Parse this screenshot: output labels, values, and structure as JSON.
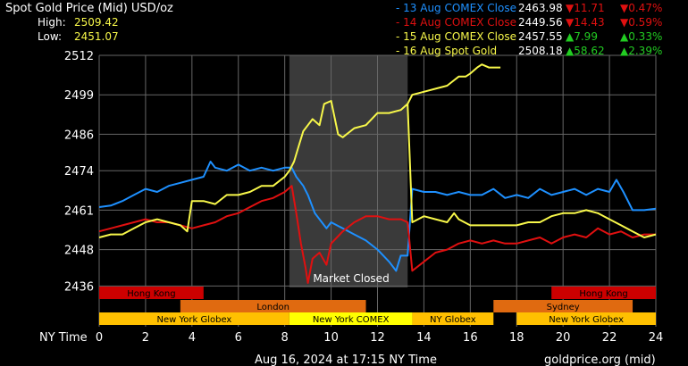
{
  "header": {
    "title": "Spot Gold Price (Mid) USD/oz",
    "high_label": "High:",
    "high_value": "2509.42",
    "low_label": "Low:",
    "low_value": "2451.07"
  },
  "legend": [
    {
      "label": "- 13 Aug COMEX Close",
      "price": "2463.98",
      "change": "11.71",
      "pct": "0.47%",
      "dir": "down",
      "color": "#1E90FF"
    },
    {
      "label": "- 14 Aug COMEX Close",
      "price": "2449.56",
      "change": "14.43",
      "pct": "0.59%",
      "dir": "down",
      "color": "#E01010"
    },
    {
      "label": "- 15 Aug COMEX Close",
      "price": "2457.55",
      "change": "7.99",
      "pct": "0.33%",
      "dir": "up",
      "color": "#F8F84A"
    },
    {
      "label": "- 16 Aug Spot Gold",
      "price": "2508.18",
      "change": "58.62",
      "pct": "2.39%",
      "dir": "up",
      "color": "#F8F84A"
    }
  ],
  "colors": {
    "up": "#22CC22",
    "down": "#E01010",
    "closed_band": "#3A3A3A",
    "grid": "#666666"
  },
  "footer": {
    "timestamp": "Aug 16, 2024 at 17:15 NY Time",
    "source": "goldprice.org (mid)",
    "x_axis_label": "NY Time"
  },
  "annotation": {
    "text": "Market Closed",
    "x_range": [
      8.2,
      13.3
    ]
  },
  "sessions": [
    {
      "label": "Hong Kong",
      "start": 0,
      "end": 4.5,
      "color": "#CC0000",
      "row": 0
    },
    {
      "label": "Hong Kong",
      "start": 19.5,
      "end": 24,
      "color": "#CC0000",
      "row": 0
    },
    {
      "label": "London",
      "start": 3.5,
      "end": 11.5,
      "color": "#E06A10",
      "row": 1
    },
    {
      "label": "Sydney",
      "start": 17,
      "end": 23,
      "color": "#E06A10",
      "row": 1
    },
    {
      "label": "New York Globex",
      "start": 0,
      "end": 8.2,
      "color": "#FFC000",
      "row": 2
    },
    {
      "label": "New York COMEX",
      "start": 8.2,
      "end": 13.5,
      "color": "#FFFF00",
      "row": 2
    },
    {
      "label": "NY Globex",
      "start": 13.5,
      "end": 17,
      "color": "#FFC000",
      "row": 2
    },
    {
      "label": "New York Globex",
      "start": 18,
      "end": 24,
      "color": "#FFC000",
      "row": 2
    }
  ],
  "chart_data": {
    "type": "line",
    "xlim": [
      0,
      24
    ],
    "ylim": [
      2432,
      2512
    ],
    "x_ticks": [
      0,
      2,
      4,
      6,
      8,
      10,
      12,
      14,
      16,
      18,
      20,
      22,
      24
    ],
    "y_ticks": [
      2436,
      2448,
      2461,
      2474,
      2486,
      2499,
      2512
    ],
    "grid": true,
    "series": [
      {
        "name": "13 Aug COMEX Close",
        "color": "#1E90FF",
        "x": [
          0,
          0.5,
          1,
          1.5,
          2,
          2.5,
          3,
          3.5,
          4,
          4.5,
          4.8,
          5,
          5.5,
          6,
          6.5,
          7,
          7.5,
          8,
          8.3,
          8.5,
          8.8,
          9,
          9.3,
          9.5,
          9.8,
          10,
          10.5,
          11,
          11.5,
          12,
          12.5,
          12.8,
          13,
          13.3,
          13.5,
          14,
          14.5,
          15,
          15.5,
          16,
          16.5,
          17,
          17.5,
          18,
          18.5,
          19,
          19.5,
          20,
          20.5,
          21,
          21.5,
          22,
          22.3,
          22.6,
          23,
          23.5,
          24
        ],
        "y": [
          2462,
          2462.5,
          2464,
          2466,
          2468,
          2467,
          2469,
          2470,
          2471,
          2472,
          2477,
          2475,
          2474,
          2476,
          2474,
          2475,
          2474,
          2475,
          2475,
          2472,
          2469,
          2466,
          2460,
          2458,
          2455,
          2457,
          2455,
          2453,
          2451,
          2448,
          2444,
          2441,
          2446,
          2446,
          2468,
          2467,
          2467,
          2466,
          2467,
          2466,
          2466,
          2468,
          2465,
          2466,
          2465,
          2468,
          2466,
          2467,
          2468,
          2466,
          2468,
          2467,
          2471,
          2467,
          2461,
          2461,
          2461.5
        ]
      },
      {
        "name": "14 Aug COMEX Close",
        "color": "#E01010",
        "x": [
          0,
          0.5,
          1,
          1.5,
          2,
          2.5,
          3,
          3.5,
          4,
          4.5,
          5,
          5.5,
          6,
          6.5,
          7,
          7.5,
          8,
          8.3,
          8.5,
          8.7,
          8.9,
          9,
          9.2,
          9.5,
          9.8,
          10,
          10.5,
          11,
          11.5,
          12,
          12.5,
          13,
          13.3,
          13.5,
          14,
          14.5,
          15,
          15.5,
          16,
          16.5,
          17,
          17.5,
          18,
          18.5,
          19,
          19.5,
          20,
          20.5,
          21,
          21.5,
          22,
          22.5,
          23,
          23.5,
          24
        ],
        "y": [
          2454,
          2455,
          2456,
          2457,
          2458,
          2457,
          2457,
          2456,
          2455,
          2456,
          2457,
          2459,
          2460,
          2462,
          2464,
          2465,
          2467,
          2469,
          2460,
          2450,
          2442,
          2437,
          2445,
          2447,
          2443,
          2450,
          2454,
          2457,
          2459,
          2459,
          2458,
          2458,
          2457,
          2441,
          2444,
          2447,
          2448,
          2450,
          2451,
          2450,
          2451,
          2450,
          2450,
          2451,
          2452,
          2450,
          2452,
          2453,
          2452,
          2455,
          2453,
          2454,
          2452,
          2453,
          2453
        ]
      },
      {
        "name": "15 Aug COMEX Close",
        "color": "#F8F84A",
        "x": [
          0,
          0.5,
          1,
          1.5,
          2,
          2.5,
          3,
          3.5,
          3.8,
          4,
          4.5,
          5,
          5.5,
          6,
          6.5,
          7,
          7.5,
          8,
          8.2,
          8.4,
          8.6,
          8.8,
          9,
          9.2,
          9.5,
          9.7,
          10,
          10.3,
          10.5,
          11,
          11.5,
          12,
          12.5,
          13,
          13.3,
          13.5,
          14,
          14.5,
          15,
          15.3,
          15.5,
          16,
          16.5,
          17,
          17.5,
          18,
          18.5,
          19,
          19.5,
          20,
          20.5,
          21,
          21.5,
          22,
          22.5,
          23,
          23.5,
          24
        ],
        "y": [
          2452,
          2453,
          2453,
          2455,
          2457,
          2458,
          2457,
          2456,
          2454,
          2464,
          2464,
          2463,
          2466,
          2466,
          2467,
          2469,
          2469,
          2472,
          2474,
          2477,
          2482,
          2487,
          2489,
          2491,
          2489,
          2496,
          2497,
          2486,
          2485,
          2488,
          2489,
          2493,
          2493,
          2494,
          2496,
          2457,
          2459,
          2458,
          2457,
          2460,
          2458,
          2456,
          2456,
          2456,
          2456,
          2456,
          2457,
          2457,
          2459,
          2460,
          2460,
          2461,
          2460,
          2458,
          2456,
          2454,
          2452,
          2453
        ]
      },
      {
        "name": "16 Aug Spot Gold",
        "color": "#F8F84A",
        "x": [
          13.3,
          13.5,
          14,
          14.5,
          15,
          15.5,
          15.8,
          16,
          16.3,
          16.5,
          16.8,
          17,
          17.3
        ],
        "y": [
          2496,
          2499,
          2500,
          2501,
          2502,
          2505,
          2505,
          2506,
          2508,
          2509,
          2508,
          2508,
          2508
        ]
      }
    ]
  }
}
